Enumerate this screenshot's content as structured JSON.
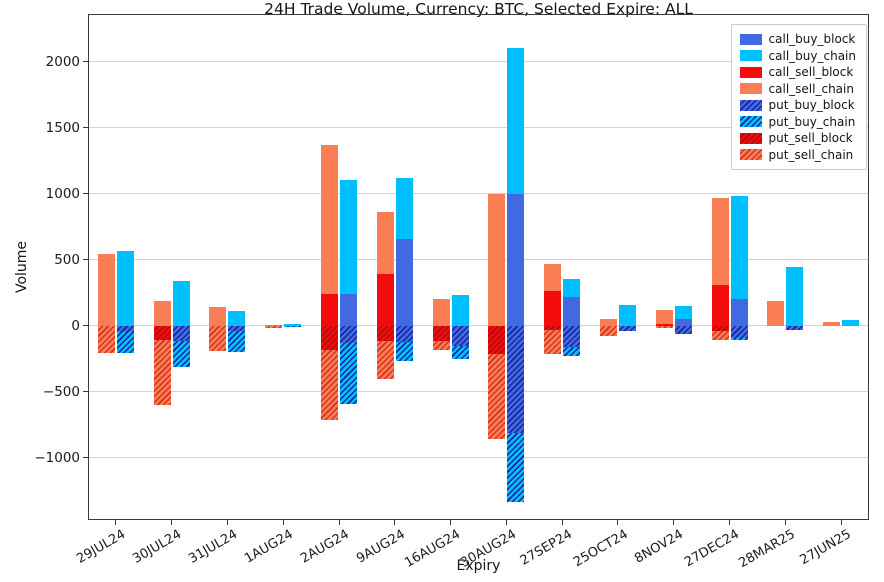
{
  "chart_data": {
    "type": "bar",
    "title": "24H Trade Volume, Currency: BTC, Selected Expire: ALL",
    "xlabel": "Expiry",
    "ylabel": "Volume",
    "ylim": [
      -1470,
      2360
    ],
    "yticks": [
      -1000,
      -500,
      0,
      500,
      1000,
      1500,
      2000
    ],
    "grid": true,
    "legend_position": "upper right",
    "bar_layout": "two stacked bars per category: left=sell (call_sell above 0, put_sell hatched below 0), right=buy (call_buy above 0, put_buy hatched below 0)",
    "categories": [
      "29JUL24",
      "30JUL24",
      "31JUL24",
      "1AUG24",
      "2AUG24",
      "9AUG24",
      "16AUG24",
      "30AUG24",
      "27SEP24",
      "25OCT24",
      "8NOV24",
      "27DEC24",
      "28MAR25",
      "27JUN25"
    ],
    "series": [
      {
        "name": "call_buy_block",
        "color": "#4169e1",
        "hatch": false,
        "hatch_color": "",
        "bar": "buy",
        "sign": 1,
        "values": [
          0,
          0,
          0,
          0,
          240,
          660,
          0,
          1000,
          215,
          0,
          55,
          205,
          0,
          0
        ]
      },
      {
        "name": "call_buy_chain",
        "color": "#00bfff",
        "hatch": false,
        "hatch_color": "",
        "bar": "buy",
        "sign": 1,
        "values": [
          565,
          340,
          110,
          10,
          865,
          460,
          230,
          1100,
          140,
          160,
          95,
          780,
          445,
          45
        ]
      },
      {
        "name": "call_sell_block",
        "color": "#f40b0b",
        "hatch": false,
        "hatch_color": "",
        "bar": "sell",
        "sign": 1,
        "values": [
          0,
          0,
          0,
          0,
          240,
          390,
          0,
          0,
          265,
          0,
          15,
          305,
          0,
          0
        ]
      },
      {
        "name": "call_sell_chain",
        "color": "#f97e54",
        "hatch": false,
        "hatch_color": "",
        "bar": "sell",
        "sign": 1,
        "values": [
          545,
          190,
          140,
          5,
          1125,
          470,
          200,
          1000,
          200,
          55,
          105,
          660,
          185,
          30
        ]
      },
      {
        "name": "put_buy_block",
        "color": "#4169e1",
        "hatch": true,
        "hatch_color": "#16249b",
        "bar": "buy",
        "sign": -1,
        "values": [
          50,
          115,
          40,
          0,
          130,
          120,
          150,
          815,
          160,
          40,
          65,
          90,
          30,
          0
        ]
      },
      {
        "name": "put_buy_chain",
        "color": "#00bfff",
        "hatch": true,
        "hatch_color": "#16249b",
        "bar": "buy",
        "sign": -1,
        "values": [
          155,
          200,
          160,
          5,
          460,
          145,
          100,
          520,
          65,
          0,
          0,
          15,
          0,
          0
        ]
      },
      {
        "name": "put_sell_block",
        "color": "#f40b0b",
        "hatch": true,
        "hatch_color": "#a50f0f",
        "bar": "sell",
        "sign": -1,
        "values": [
          0,
          110,
          0,
          0,
          180,
          115,
          115,
          210,
          35,
          0,
          0,
          40,
          0,
          0
        ]
      },
      {
        "name": "put_sell_chain",
        "color": "#f97e54",
        "hatch": true,
        "hatch_color": "#d7301f",
        "bar": "sell",
        "sign": -1,
        "values": [
          205,
          490,
          190,
          20,
          530,
          290,
          65,
          650,
          180,
          75,
          20,
          70,
          0,
          0
        ]
      }
    ]
  }
}
